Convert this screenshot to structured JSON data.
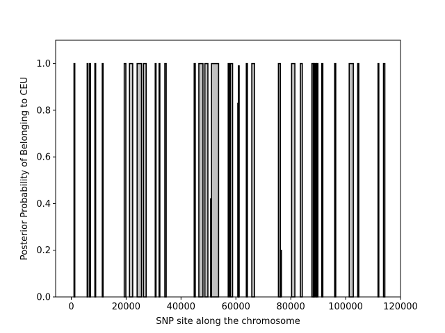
{
  "chart_data": {
    "type": "area",
    "xlabel": "SNP site along the chromosome",
    "ylabel": "Posterior Probability of Belonging to CEU",
    "xlim": [
      -5700,
      120000
    ],
    "ylim": [
      0.0,
      1.1
    ],
    "xticks": [
      0,
      20000,
      40000,
      60000,
      80000,
      100000,
      120000
    ],
    "xtick_labels": [
      "0",
      "20000",
      "40000",
      "60000",
      "80000",
      "100000",
      "120000"
    ],
    "yticks": [
      0.0,
      0.2,
      0.4,
      0.6,
      0.8,
      1.0
    ],
    "ytick_labels": [
      "0.0",
      "0.2",
      "0.4",
      "0.6",
      "0.8",
      "1.0"
    ],
    "grid": false,
    "fill_color": "#c0c0c0",
    "line_color": "#000000",
    "segments": [
      {
        "start": 1000,
        "end": 1300,
        "value": 1.0
      },
      {
        "start": 5800,
        "end": 6100,
        "value": 1.0
      },
      {
        "start": 6700,
        "end": 7000,
        "value": 1.0
      },
      {
        "start": 8600,
        "end": 8900,
        "value": 1.0
      },
      {
        "start": 11300,
        "end": 11600,
        "value": 1.0
      },
      {
        "start": 19300,
        "end": 19900,
        "value": 1.0
      },
      {
        "start": 21200,
        "end": 22400,
        "value": 1.0
      },
      {
        "start": 24000,
        "end": 25600,
        "value": 1.0
      },
      {
        "start": 26300,
        "end": 27300,
        "value": 1.0
      },
      {
        "start": 30600,
        "end": 30900,
        "value": 1.0
      },
      {
        "start": 32000,
        "end": 32300,
        "value": 1.0
      },
      {
        "start": 34100,
        "end": 34600,
        "value": 1.0
      },
      {
        "start": 44800,
        "end": 45200,
        "value": 1.0
      },
      {
        "start": 46500,
        "end": 48000,
        "value": 1.0
      },
      {
        "start": 48700,
        "end": 49800,
        "value": 1.0
      },
      {
        "start": 50800,
        "end": 51100,
        "value": 0.42
      },
      {
        "start": 51100,
        "end": 53700,
        "value": 1.0
      },
      {
        "start": 57200,
        "end": 57600,
        "value": 1.0
      },
      {
        "start": 58000,
        "end": 58800,
        "value": 1.0
      },
      {
        "start": 60700,
        "end": 61000,
        "value": 0.83
      },
      {
        "start": 60900,
        "end": 61200,
        "value": 0.99
      },
      {
        "start": 63800,
        "end": 64200,
        "value": 1.0
      },
      {
        "start": 65800,
        "end": 66800,
        "value": 1.0
      },
      {
        "start": 75500,
        "end": 76200,
        "value": 1.0
      },
      {
        "start": 76200,
        "end": 76600,
        "value": 0.2
      },
      {
        "start": 80300,
        "end": 81500,
        "value": 1.0
      },
      {
        "start": 83500,
        "end": 84200,
        "value": 1.0
      },
      {
        "start": 87700,
        "end": 88200,
        "value": 1.0
      },
      {
        "start": 88300,
        "end": 88600,
        "value": 1.0
      },
      {
        "start": 88900,
        "end": 89300,
        "value": 1.0
      },
      {
        "start": 89500,
        "end": 89900,
        "value": 1.0
      },
      {
        "start": 91300,
        "end": 91700,
        "value": 1.0
      },
      {
        "start": 96000,
        "end": 96400,
        "value": 1.0
      },
      {
        "start": 101300,
        "end": 102800,
        "value": 1.0
      },
      {
        "start": 104400,
        "end": 104800,
        "value": 1.0
      },
      {
        "start": 111800,
        "end": 112100,
        "value": 1.0
      },
      {
        "start": 113800,
        "end": 114300,
        "value": 1.0
      }
    ]
  }
}
